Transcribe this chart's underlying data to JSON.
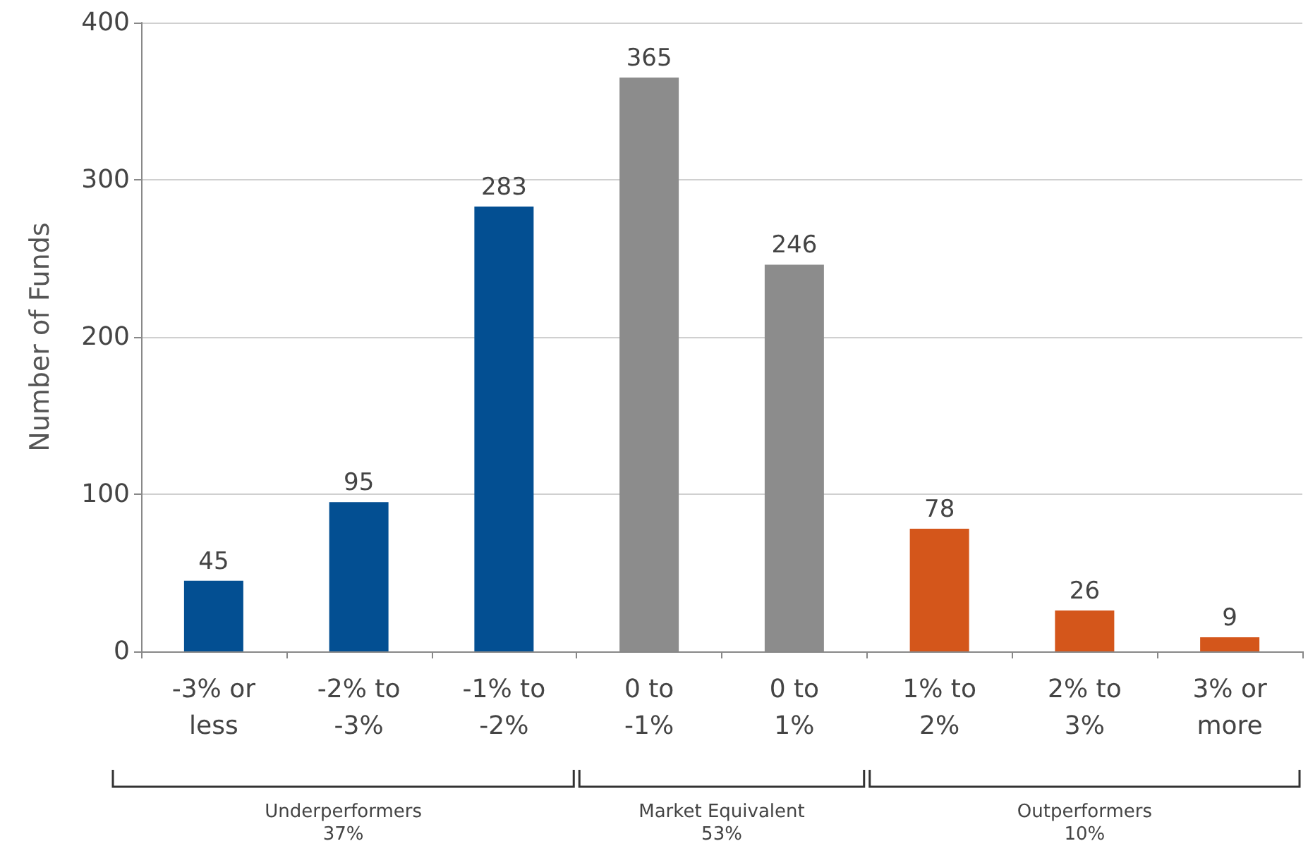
{
  "chart_data": {
    "type": "bar",
    "ylabel": "Number of Funds",
    "categories": [
      "-3% or less",
      "-2% to -3%",
      "-1% to -2%",
      "0 to -1%",
      "0 to 1%",
      "1% to 2%",
      "2% to 3%",
      "3% or more"
    ],
    "values": [
      45,
      95,
      283,
      365,
      246,
      78,
      26,
      9
    ],
    "colors": [
      "#034f92",
      "#034f92",
      "#034f92",
      "#8c8c8c",
      "#8c8c8c",
      "#d4561b",
      "#d4561b",
      "#d4561b"
    ],
    "ylim": [
      0,
      400
    ],
    "yticks": [
      0,
      100,
      200,
      300,
      400
    ],
    "grid": "y",
    "data_labels": true,
    "annotations": [
      "Underperformers 37%",
      "Market Equivalent 53%",
      "Outperformers 10%"
    ]
  }
}
